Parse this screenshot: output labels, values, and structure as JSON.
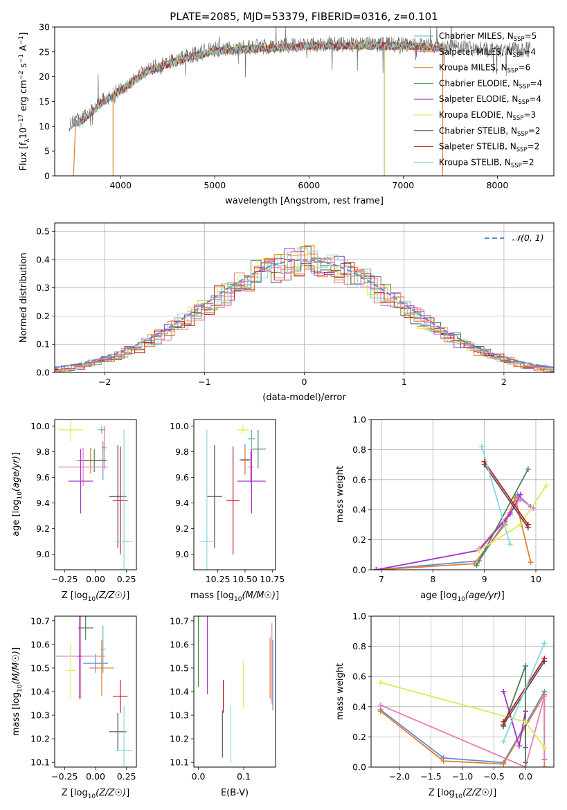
{
  "title": "PLATE=2085, MJD=53379, FIBERID=0316, z=0.101",
  "colors": {
    "chabrier_miles": "#5fb4ac",
    "salpeter_miles": "#e87b7b",
    "kroupa_miles": "#d98b2b",
    "chabrier_elodie": "#4f7f52",
    "salpeter_elodie": "#a330c9",
    "kroupa_elodie": "#e2e83a",
    "chabrier_stelib": "#555555",
    "salpeter_stelib": "#c0191f",
    "kroupa_stelib": "#86d8e0",
    "pink": "#e77cbc",
    "orange": "#e57b2a",
    "blue": "#5a8fd6",
    "yellow": "#d8ec55"
  },
  "legend_spectrum": [
    {
      "label": "Chabrier MILES, N",
      "sub": "SSP",
      "tail": "=5",
      "color": "#5fb4ac"
    },
    {
      "label": "Salpeter MILES, N",
      "sub": "SSP",
      "tail": "=4",
      "color": "#e87b7b"
    },
    {
      "label": "Kroupa MILES, N",
      "sub": "SSP",
      "tail": "=6",
      "color": "#d98b2b"
    },
    {
      "label": "Chabrier ELODIE, N",
      "sub": "SSP",
      "tail": "=4",
      "color": "#4f7f52"
    },
    {
      "label": "Salpeter ELODIE, N",
      "sub": "SSP",
      "tail": "=4",
      "color": "#a330c9"
    },
    {
      "label": "Kroupa ELODIE, N",
      "sub": "SSP",
      "tail": "=3",
      "color": "#e2e83a"
    },
    {
      "label": "Chabrier STELIB, N",
      "sub": "SSP",
      "tail": "=2",
      "color": "#555555"
    },
    {
      "label": "Salpeter STELIB, N",
      "sub": "SSP",
      "tail": "=2",
      "color": "#c0191f"
    },
    {
      "label": "Kroupa STELIB, N",
      "sub": "SSP",
      "tail": "=2",
      "color": "#86d8e0"
    }
  ],
  "legend_hist": "𝒩(0, 1)",
  "chart_data": [
    {
      "type": "line",
      "name": "spectrum",
      "title": "PLATE=2085, MJD=53379, FIBERID=0316, z=0.101",
      "xlabel": "wavelength [Angstrom, rest frame]",
      "ylabel_parts": [
        "Flux [f",
        "λ",
        "10",
        "−17",
        " erg cm",
        "−2",
        " s",
        "−1",
        " A",
        "−1",
        "]"
      ],
      "xlim": [
        3300,
        8600
      ],
      "ylim": [
        0,
        30
      ],
      "xticks": [
        4000,
        5000,
        6000,
        7000,
        8000
      ],
      "yticks": [
        0,
        5,
        10,
        15,
        20,
        25,
        30
      ],
      "continuum_x": [
        3450,
        3600,
        3800,
        4000,
        4300,
        4600,
        5000,
        5500,
        6000,
        6500,
        7000,
        7500,
        8000,
        8350
      ],
      "continuum_y": [
        10.5,
        11.5,
        15,
        17.5,
        21.5,
        23.5,
        25.5,
        26,
        26.5,
        26.5,
        26.5,
        26,
        25.3,
        25.5
      ],
      "observed_range": [
        3450,
        8350
      ],
      "model_range": [
        3500,
        7420
      ],
      "model_dropouts": [
        3920,
        6800,
        7420
      ]
    },
    {
      "type": "step",
      "name": "residuals",
      "xlabel": "(data-model)/error",
      "ylabel": "Normed distribution",
      "xlim": [
        -2.5,
        2.5
      ],
      "ylim": [
        0,
        0.53
      ],
      "xticks": [
        -2,
        -1,
        0,
        1,
        2
      ],
      "yticks": [
        0.0,
        0.1,
        0.2,
        0.3,
        0.4,
        0.5
      ],
      "bin_width": 0.1,
      "reference_curve": "N(0,1)"
    },
    {
      "type": "errorbar",
      "name": "age_vs_Z",
      "xlabel": "Z [log10(Z/Z☉)]",
      "ylabel": "age  [log10(age/yr)]",
      "xlim": [
        -0.33,
        0.33
      ],
      "ylim": [
        8.88,
        10.05
      ],
      "xticks": [
        -0.25,
        0.0,
        0.25
      ],
      "yticks": [
        9.0,
        9.2,
        9.4,
        9.6,
        9.8,
        10.0
      ],
      "points": [
        {
          "x": -0.2,
          "y": 9.97,
          "xerr": 0.1,
          "yerr": 0.09,
          "color": "#d8ec55"
        },
        {
          "x": 0.05,
          "y": 9.97,
          "xerr": 0.03,
          "yerr": 0.03,
          "color": "#5fb4ac"
        },
        {
          "x": 0.07,
          "y": 9.83,
          "xerr": 0.02,
          "yerr": 0.17,
          "color": "#e87b7b"
        },
        {
          "x": 0.06,
          "y": 9.73,
          "xerr": 0.03,
          "yerr": 0.15,
          "color": "#5a8fd6"
        },
        {
          "x": -0.04,
          "y": 9.73,
          "xerr": 0.11,
          "yerr": 0.1,
          "color": "#e57b2a"
        },
        {
          "x": -0.01,
          "y": 9.73,
          "xerr": 0.1,
          "yerr": 0.09,
          "color": "#4f7f52"
        },
        {
          "x": -0.1,
          "y": 9.68,
          "xerr": 0.2,
          "yerr": 0.15,
          "color": "#e77cbc"
        },
        {
          "x": -0.12,
          "y": 9.57,
          "xerr": 0.1,
          "yerr": 0.25,
          "color": "#a330c9"
        },
        {
          "x": 0.18,
          "y": 9.45,
          "xerr": 0.07,
          "yerr": 0.4,
          "color": "#555555"
        },
        {
          "x": 0.2,
          "y": 9.42,
          "xerr": 0.06,
          "yerr": 0.42,
          "color": "#c0191f"
        },
        {
          "x": 0.23,
          "y": 9.1,
          "xerr": 0.07,
          "yerr": 0.87,
          "color": "#86d8e0"
        }
      ]
    },
    {
      "type": "errorbar",
      "name": "age_vs_mass",
      "xlabel": "mass [log10(M/M☉)]",
      "ylabel": "",
      "xlim": [
        10.03,
        10.78
      ],
      "ylim": [
        8.88,
        10.05
      ],
      "xticks": [
        10.25,
        10.5,
        10.75
      ],
      "yticks": [
        9.0,
        9.2,
        9.4,
        9.6,
        9.8,
        10.0
      ],
      "points": [
        {
          "x": 10.48,
          "y": 9.97,
          "xerr": 0.05,
          "yerr": 0.03,
          "color": "#d8ec55"
        },
        {
          "x": 10.56,
          "y": 9.9,
          "xerr": 0.03,
          "yerr": 0.07,
          "color": "#5fb4ac"
        },
        {
          "x": 10.62,
          "y": 9.82,
          "xerr": 0.07,
          "yerr": 0.15,
          "color": "#4f7f52"
        },
        {
          "x": 10.5,
          "y": 9.74,
          "xerr": 0.05,
          "yerr": 0.12,
          "color": "#5a8fd6"
        },
        {
          "x": 10.5,
          "y": 9.73,
          "xerr": 0.04,
          "yerr": 0.1,
          "color": "#e57b2a"
        },
        {
          "x": 10.55,
          "y": 9.68,
          "xerr": 0.03,
          "yerr": 0.12,
          "color": "#e77cbc"
        },
        {
          "x": 10.56,
          "y": 9.57,
          "xerr": 0.13,
          "yerr": 0.25,
          "color": "#a330c9"
        },
        {
          "x": 10.22,
          "y": 9.45,
          "xerr": 0.07,
          "yerr": 0.4,
          "color": "#555555"
        },
        {
          "x": 10.39,
          "y": 9.42,
          "xerr": 0.06,
          "yerr": 0.42,
          "color": "#c0191f"
        },
        {
          "x": 10.15,
          "y": 9.1,
          "xerr": 0.07,
          "yerr": 0.87,
          "color": "#86d8e0"
        }
      ]
    },
    {
      "type": "line",
      "name": "mass_weight_vs_age",
      "xlabel": "age  [log10(age/yr)]",
      "ylabel": "mass weight",
      "xlim": [
        6.8,
        10.35
      ],
      "ylim": [
        0,
        1
      ],
      "xticks": [
        7,
        8,
        9,
        10
      ],
      "yticks": [
        0.0,
        0.2,
        0.4,
        0.6,
        0.8,
        1.0
      ],
      "series": [
        {
          "color": "#5a8fd6",
          "x": [
            6.9,
            8.9,
            9.4,
            9.65,
            9.9
          ],
          "y": [
            0.0,
            0.06,
            0.32,
            0.5,
            0.42
          ]
        },
        {
          "color": "#e57b2a",
          "x": [
            6.9,
            8.8,
            9.4,
            9.6,
            9.9
          ],
          "y": [
            0.0,
            0.04,
            0.3,
            0.48,
            0.05
          ]
        },
        {
          "color": "#e77cbc",
          "x": [
            8.9,
            9.5,
            9.7,
            9.95
          ],
          "y": [
            0.14,
            0.38,
            0.47,
            0.41
          ]
        },
        {
          "color": "#a330c9",
          "x": [
            6.9,
            8.9,
            9.5,
            9.7
          ],
          "y": [
            0.0,
            0.13,
            0.37,
            0.5
          ]
        },
        {
          "color": "#4f7f52",
          "x": [
            8.85,
            9.85
          ],
          "y": [
            0.03,
            0.67
          ]
        },
        {
          "color": "#d8ec55",
          "x": [
            8.9,
            9.7,
            10.2
          ],
          "y": [
            0.13,
            0.3,
            0.56
          ]
        },
        {
          "color": "#555555",
          "x": [
            9.0,
            9.85
          ],
          "y": [
            0.7,
            0.28
          ]
        },
        {
          "color": "#c0191f",
          "x": [
            9.0,
            9.85
          ],
          "y": [
            0.72,
            0.3
          ]
        },
        {
          "color": "#86d8e0",
          "x": [
            8.95,
            9.5
          ],
          "y": [
            0.82,
            0.17
          ]
        }
      ]
    },
    {
      "type": "errorbar",
      "name": "mass_vs_Z",
      "xlabel": "Z [log10(Z/Z☉)]",
      "ylabel": "mass [log10(M/M☉)]",
      "xlim": [
        -0.33,
        0.33
      ],
      "ylim": [
        10.08,
        10.72
      ],
      "xticks": [
        -0.25,
        0.0,
        0.25
      ],
      "yticks": [
        10.1,
        10.2,
        10.3,
        10.4,
        10.5,
        10.6,
        10.7
      ],
      "points": [
        {
          "x": -0.12,
          "y": 10.55,
          "xerr": 0.2,
          "yerr": 0.18,
          "color": "#e77cbc"
        },
        {
          "x": -0.13,
          "y": 10.55,
          "xerr": 0.02,
          "yerr": 0.18,
          "color": "#a330c9"
        },
        {
          "x": -0.08,
          "y": 10.67,
          "xerr": 0.06,
          "yerr": 0.05,
          "color": "#4f7f52"
        },
        {
          "x": -0.2,
          "y": 10.49,
          "xerr": 0.04,
          "yerr": 0.12,
          "color": "#d8ec55"
        },
        {
          "x": 0.0,
          "y": 10.52,
          "xerr": 0.1,
          "yerr": 0.04,
          "color": "#5a8fd6"
        },
        {
          "x": 0.05,
          "y": 10.5,
          "xerr": 0.1,
          "yerr": 0.12,
          "color": "#e57b2a"
        },
        {
          "x": 0.06,
          "y": 10.58,
          "xerr": 0.02,
          "yerr": 0.1,
          "color": "#5fb4ac"
        },
        {
          "x": 0.2,
          "y": 10.38,
          "xerr": 0.06,
          "yerr": 0.07,
          "color": "#c0191f"
        },
        {
          "x": 0.18,
          "y": 10.23,
          "xerr": 0.07,
          "yerr": 0.08,
          "color": "#555555"
        },
        {
          "x": 0.23,
          "y": 10.15,
          "xerr": 0.07,
          "yerr": 0.19,
          "color": "#86d8e0"
        }
      ]
    },
    {
      "type": "errorbar",
      "name": "mass_vs_EBV",
      "xlabel": "E(B-V)",
      "ylabel": "",
      "xlim": [
        -0.01,
        0.17
      ],
      "ylim": [
        10.08,
        10.72
      ],
      "xticks": [
        0.0,
        0.1
      ],
      "yticks": [
        10.1,
        10.2,
        10.3,
        10.4,
        10.5,
        10.6,
        10.7
      ],
      "points": [
        {
          "x": 0.0,
          "y": 10.57,
          "xerr": 0,
          "yerr": 0.15,
          "color": "#4f7f52"
        },
        {
          "x": 0.02,
          "y": 10.56,
          "xerr": 0,
          "yerr": 0.17,
          "color": "#a330c9"
        },
        {
          "x": 0.055,
          "y": 10.38,
          "xerr": 0,
          "yerr": 0.07,
          "color": "#c0191f"
        },
        {
          "x": 0.053,
          "y": 10.22,
          "xerr": 0,
          "yerr": 0.1,
          "color": "#555555"
        },
        {
          "x": 0.071,
          "y": 10.22,
          "xerr": 0,
          "yerr": 0.12,
          "color": "#86d8e0"
        },
        {
          "x": 0.099,
          "y": 10.43,
          "xerr": 0,
          "yerr": 0.1,
          "color": "#d8ec55"
        },
        {
          "x": 0.158,
          "y": 10.5,
          "xerr": 0,
          "yerr": 0.13,
          "color": "#e57b2a"
        },
        {
          "x": 0.162,
          "y": 10.52,
          "xerr": 0,
          "yerr": 0.17,
          "color": "#e77cbc"
        },
        {
          "x": 0.164,
          "y": 10.47,
          "xerr": 0,
          "yerr": 0.15,
          "color": "#5a8fd6"
        }
      ]
    },
    {
      "type": "line",
      "name": "mass_weight_vs_Z",
      "xlabel": "Z [log10(Z/Z☉)]",
      "ylabel": "mass weight",
      "xlim": [
        -2.45,
        0.45
      ],
      "ylim": [
        0,
        1
      ],
      "xticks": [
        -2.0,
        -1.5,
        -1.0,
        -0.5,
        0.0
      ],
      "yticks": [
        0.0,
        0.2,
        0.4,
        0.6,
        0.8,
        1.0
      ],
      "series": [
        {
          "color": "#5a8fd6",
          "x": [
            -2.3,
            -1.3,
            -0.35,
            0.3,
            0.3
          ],
          "y": [
            0.38,
            0.06,
            0.03,
            0.5,
            0.05
          ]
        },
        {
          "color": "#e57b2a",
          "x": [
            -2.3,
            -1.3,
            -0.35,
            0.3,
            0.3
          ],
          "y": [
            0.37,
            0.04,
            0.02,
            0.48,
            0.0
          ]
        },
        {
          "color": "#e77cbc",
          "x": [
            -2.3,
            0.0,
            0.3,
            0.3
          ],
          "y": [
            0.41,
            0.0,
            0.47,
            0.05
          ]
        },
        {
          "color": "#a330c9",
          "x": [
            -0.35,
            -0.1,
            0.0,
            0.0
          ],
          "y": [
            0.5,
            0.14,
            0.37,
            0.13
          ]
        },
        {
          "color": "#4f7f52",
          "x": [
            -0.35,
            0.0,
            0.0
          ],
          "y": [
            0.27,
            0.67,
            0.03
          ]
        },
        {
          "color": "#d8ec55",
          "x": [
            -2.3,
            0.0,
            0.3
          ],
          "y": [
            0.56,
            0.3,
            0.13
          ]
        },
        {
          "color": "#555555",
          "x": [
            -0.35,
            0.3
          ],
          "y": [
            0.28,
            0.7
          ]
        },
        {
          "color": "#c0191f",
          "x": [
            -0.35,
            0.3
          ],
          "y": [
            0.3,
            0.72
          ]
        },
        {
          "color": "#86d8e0",
          "x": [
            -0.35,
            0.3
          ],
          "y": [
            0.17,
            0.82
          ]
        }
      ]
    }
  ]
}
